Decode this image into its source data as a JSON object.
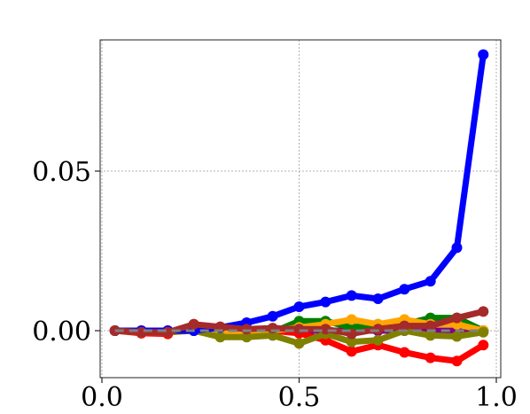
{
  "chart_data": {
    "type": "line",
    "title": "",
    "xlabel": "",
    "ylabel": "",
    "xlim": [
      0.0,
      1.0
    ],
    "ylim": [
      -0.015,
      0.09
    ],
    "grid": true,
    "x_ticks": [
      0.0,
      0.5,
      1.0
    ],
    "x_tick_labels": [
      "0.0",
      "0.5",
      "1.0"
    ],
    "y_ticks": [
      0.0,
      0.05
    ],
    "y_tick_labels": [
      "0.00",
      "0.05"
    ],
    "x": [
      0.033,
      0.1,
      0.167,
      0.233,
      0.3,
      0.367,
      0.433,
      0.5,
      0.567,
      0.633,
      0.7,
      0.767,
      0.833,
      0.9,
      0.967
    ],
    "series": [
      {
        "color": "#800080",
        "values": [
          0.0,
          0.0,
          0.0,
          0.0,
          0.0,
          0.0,
          0.0,
          0.0,
          0.0,
          0.0,
          0.0,
          0.0,
          0.0,
          0.0,
          0.0
        ]
      },
      {
        "color": "#ff0000",
        "values": [
          0.0,
          -0.0008,
          -0.001,
          0.002,
          0.0005,
          -0.0005,
          0.0,
          -0.0008,
          -0.003,
          -0.0065,
          -0.0045,
          -0.0068,
          -0.0085,
          -0.0095,
          -0.0045
        ]
      },
      {
        "color": "#008000",
        "values": [
          0.0,
          -0.0005,
          -0.0005,
          0.0005,
          -0.001,
          -0.001,
          -0.0005,
          0.003,
          0.003,
          0.001,
          0.002,
          0.002,
          0.004,
          0.004,
          0.0
        ]
      },
      {
        "color": "#ffa500",
        "values": [
          0.0,
          -0.0005,
          -0.0005,
          0.0005,
          0.0,
          -0.0005,
          0.0,
          0.001,
          0.002,
          0.0035,
          0.002,
          0.0035,
          0.002,
          0.002,
          0.0
        ]
      },
      {
        "color": "#808000",
        "values": [
          0.0,
          -0.0005,
          -0.0005,
          0.0,
          -0.002,
          -0.002,
          -0.0015,
          -0.004,
          -0.001,
          -0.0035,
          -0.003,
          0.0,
          -0.0015,
          -0.0018,
          -0.0005
        ]
      },
      {
        "color": "#0000ff",
        "values": [
          0.0,
          0.0,
          0.0,
          0.0,
          0.001,
          0.0025,
          0.0045,
          0.0075,
          0.009,
          0.011,
          0.01,
          0.013,
          0.0155,
          0.026,
          0.0865
        ]
      },
      {
        "color": "#a52a2a",
        "values": [
          0.0,
          -0.0005,
          -0.0005,
          0.002,
          0.0012,
          0.0005,
          0.0008,
          0.0005,
          0.0005,
          -0.001,
          0.0005,
          0.0015,
          0.0015,
          0.004,
          0.006
        ]
      }
    ],
    "baseline": {
      "color": "#808080",
      "value": 0.0,
      "style": "dashed"
    }
  }
}
